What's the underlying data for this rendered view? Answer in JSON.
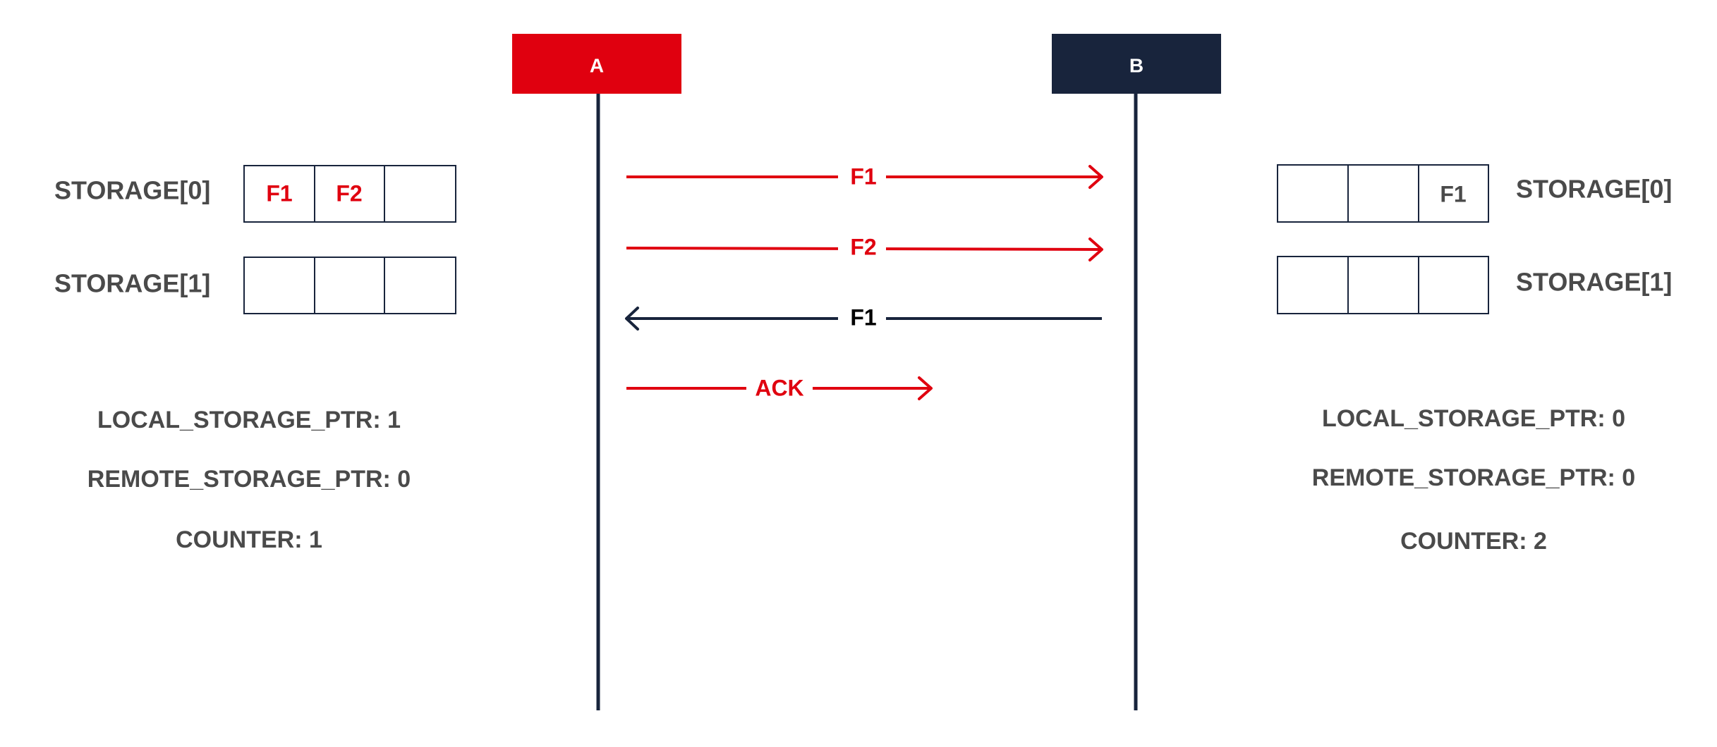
{
  "colors": {
    "red": "#e0000f",
    "navy": "#18243c",
    "text_gray": "#4a4a4a",
    "white": "#ffffff"
  },
  "participants": [
    {
      "label": "A",
      "color": "#e0000f"
    },
    {
      "label": "B",
      "color": "#18243c"
    }
  ],
  "left": {
    "storage_rows": [
      {
        "label": "STORAGE[0]",
        "cells": [
          "F1",
          "F2",
          ""
        ],
        "cell_color": "#e0000f"
      },
      {
        "label": "STORAGE[1]",
        "cells": [
          "",
          "",
          ""
        ],
        "cell_color": "#e0000f"
      }
    ],
    "status": [
      "LOCAL_STORAGE_PTR: 1",
      "REMOTE_STORAGE_PTR: 0",
      "COUNTER: 1"
    ]
  },
  "right": {
    "storage_rows": [
      {
        "label": "STORAGE[0]",
        "cells": [
          "",
          "",
          "F1"
        ],
        "cell_color": "#4a4a4a"
      },
      {
        "label": "STORAGE[1]",
        "cells": [
          "",
          "",
          ""
        ],
        "cell_color": "#4a4a4a"
      }
    ],
    "status": [
      "LOCAL_STORAGE_PTR: 0",
      "REMOTE_STORAGE_PTR: 0",
      "COUNTER: 2"
    ]
  },
  "messages": [
    {
      "label": "F1",
      "from": "A",
      "to": "B",
      "color": "#e0000f",
      "label_color": "#e0000f"
    },
    {
      "label": "F2",
      "from": "A",
      "to": "B",
      "color": "#e0000f",
      "label_color": "#e0000f"
    },
    {
      "label": "F1",
      "from": "B",
      "to": "A",
      "color": "#18243c",
      "label_color": "#000000"
    },
    {
      "label": "ACK",
      "from": "A",
      "to": "partial",
      "color": "#e0000f",
      "label_color": "#e0000f"
    }
  ]
}
